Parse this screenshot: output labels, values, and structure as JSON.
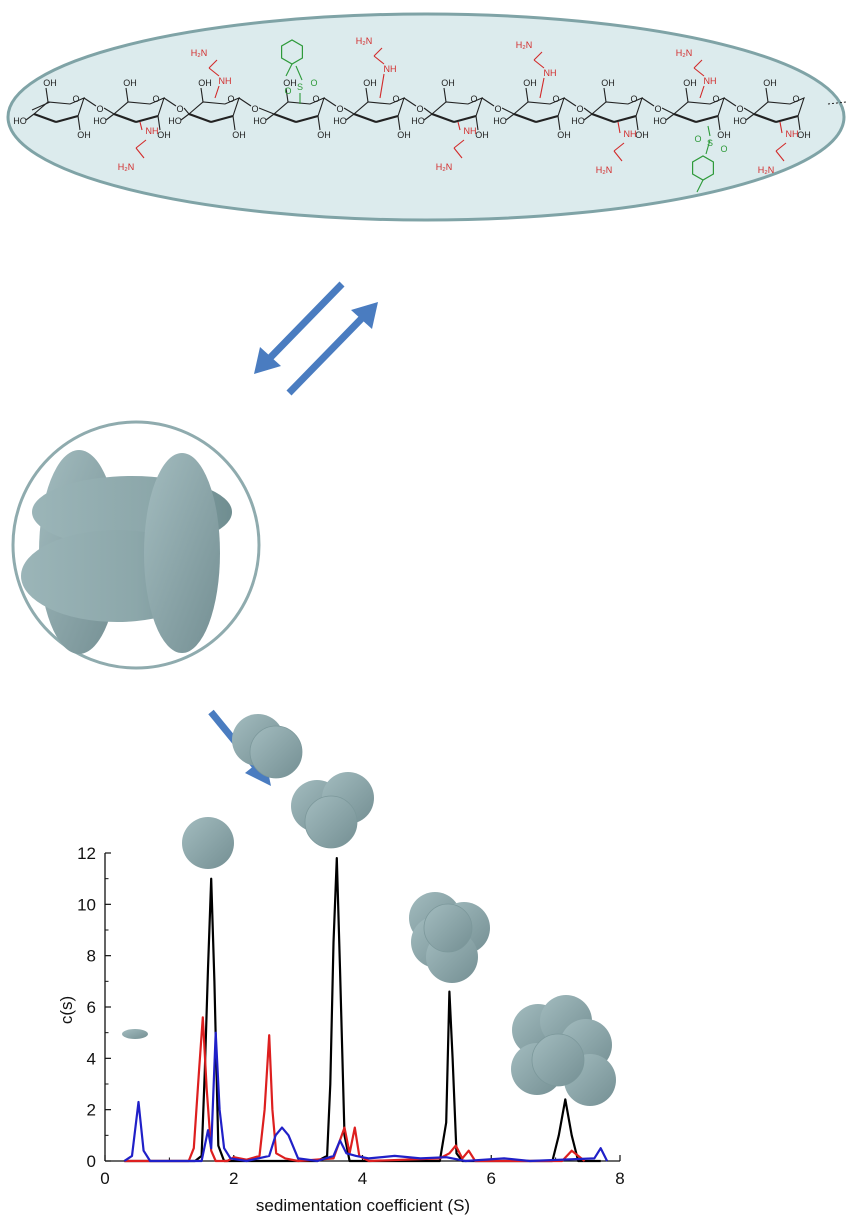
{
  "colors": {
    "ellipse_fill": "#dcebed",
    "ellipse_stroke": "#7fa3a6",
    "particle_fill": "#8fabae",
    "particle_dark": "#6f8f92",
    "arrow": "#4a7cc0",
    "bond": "#222222",
    "amine": "#d22a2a",
    "tosyl": "#2e9a3a"
  },
  "labels": {
    "oh": "OH",
    "ho": "HO",
    "o": "O",
    "nh": "NH",
    "h2n": "H₂N",
    "s": "S"
  },
  "chart_data": {
    "type": "line",
    "xlabel": "sedimentation coefficient (S)",
    "ylabel": "c(s)",
    "xlim": [
      0,
      8
    ],
    "ylim": [
      0,
      12
    ],
    "xticks": [
      "0",
      "2",
      "4",
      "6",
      "8"
    ],
    "yticks": [
      "0",
      "2",
      "4",
      "6",
      "8",
      "10",
      "12"
    ],
    "grid": false,
    "series": [
      {
        "color": "#000000",
        "points": [
          [
            0.3,
            0
          ],
          [
            1.4,
            0
          ],
          [
            1.5,
            0.2
          ],
          [
            1.55,
            3.5
          ],
          [
            1.6,
            7.5
          ],
          [
            1.65,
            11.0
          ],
          [
            1.7,
            7.0
          ],
          [
            1.76,
            0.6
          ],
          [
            1.85,
            0
          ],
          [
            3.3,
            0
          ],
          [
            3.45,
            0.2
          ],
          [
            3.5,
            3.0
          ],
          [
            3.55,
            8.5
          ],
          [
            3.6,
            11.8
          ],
          [
            3.65,
            7.5
          ],
          [
            3.72,
            1.0
          ],
          [
            3.8,
            0
          ],
          [
            5.2,
            0
          ],
          [
            5.3,
            1.5
          ],
          [
            5.35,
            6.6
          ],
          [
            5.4,
            4.0
          ],
          [
            5.46,
            0.3
          ],
          [
            5.55,
            0
          ],
          [
            6.95,
            0
          ],
          [
            7.05,
            1.0
          ],
          [
            7.15,
            2.4
          ],
          [
            7.25,
            1.0
          ],
          [
            7.35,
            0
          ],
          [
            7.7,
            0
          ]
        ]
      },
      {
        "color": "#dd1f1f",
        "points": [
          [
            0.3,
            0
          ],
          [
            1.3,
            0
          ],
          [
            1.38,
            0.5
          ],
          [
            1.46,
            3.5
          ],
          [
            1.52,
            5.6
          ],
          [
            1.58,
            2.8
          ],
          [
            1.65,
            0.4
          ],
          [
            1.72,
            0
          ],
          [
            1.9,
            0
          ],
          [
            2.0,
            0.15
          ],
          [
            2.2,
            0.05
          ],
          [
            2.4,
            0.2
          ],
          [
            2.48,
            2.0
          ],
          [
            2.55,
            4.9
          ],
          [
            2.6,
            2.0
          ],
          [
            2.66,
            0.3
          ],
          [
            2.8,
            0.1
          ],
          [
            3.0,
            0
          ],
          [
            3.55,
            0.1
          ],
          [
            3.72,
            1.3
          ],
          [
            3.8,
            0.3
          ],
          [
            3.88,
            1.3
          ],
          [
            3.95,
            0.2
          ],
          [
            4.1,
            0
          ],
          [
            5.2,
            0.1
          ],
          [
            5.35,
            0.3
          ],
          [
            5.45,
            0.6
          ],
          [
            5.55,
            0.1
          ],
          [
            5.65,
            0.4
          ],
          [
            5.75,
            0
          ],
          [
            7.1,
            0
          ],
          [
            7.25,
            0.4
          ],
          [
            7.35,
            0.2
          ],
          [
            7.45,
            0
          ]
        ]
      },
      {
        "color": "#2020c8",
        "points": [
          [
            0.3,
            0
          ],
          [
            0.42,
            0.2
          ],
          [
            0.52,
            2.3
          ],
          [
            0.6,
            0.4
          ],
          [
            0.7,
            0
          ],
          [
            1.5,
            0
          ],
          [
            1.6,
            1.2
          ],
          [
            1.65,
            0.5
          ],
          [
            1.72,
            5.0
          ],
          [
            1.78,
            2.0
          ],
          [
            1.85,
            0.5
          ],
          [
            1.95,
            0.1
          ],
          [
            2.2,
            0
          ],
          [
            2.55,
            0.2
          ],
          [
            2.65,
            1.0
          ],
          [
            2.75,
            1.3
          ],
          [
            2.85,
            1.0
          ],
          [
            3.0,
            0.1
          ],
          [
            3.3,
            0
          ],
          [
            3.55,
            0.2
          ],
          [
            3.65,
            0.8
          ],
          [
            3.75,
            0.3
          ],
          [
            3.9,
            0.2
          ],
          [
            4.1,
            0.1
          ],
          [
            4.5,
            0.2
          ],
          [
            4.9,
            0.1
          ],
          [
            5.3,
            0.15
          ],
          [
            5.6,
            0
          ],
          [
            6.2,
            0.1
          ],
          [
            6.6,
            0
          ],
          [
            7.6,
            0.1
          ],
          [
            7.7,
            0.5
          ],
          [
            7.8,
            0
          ]
        ]
      }
    ]
  }
}
